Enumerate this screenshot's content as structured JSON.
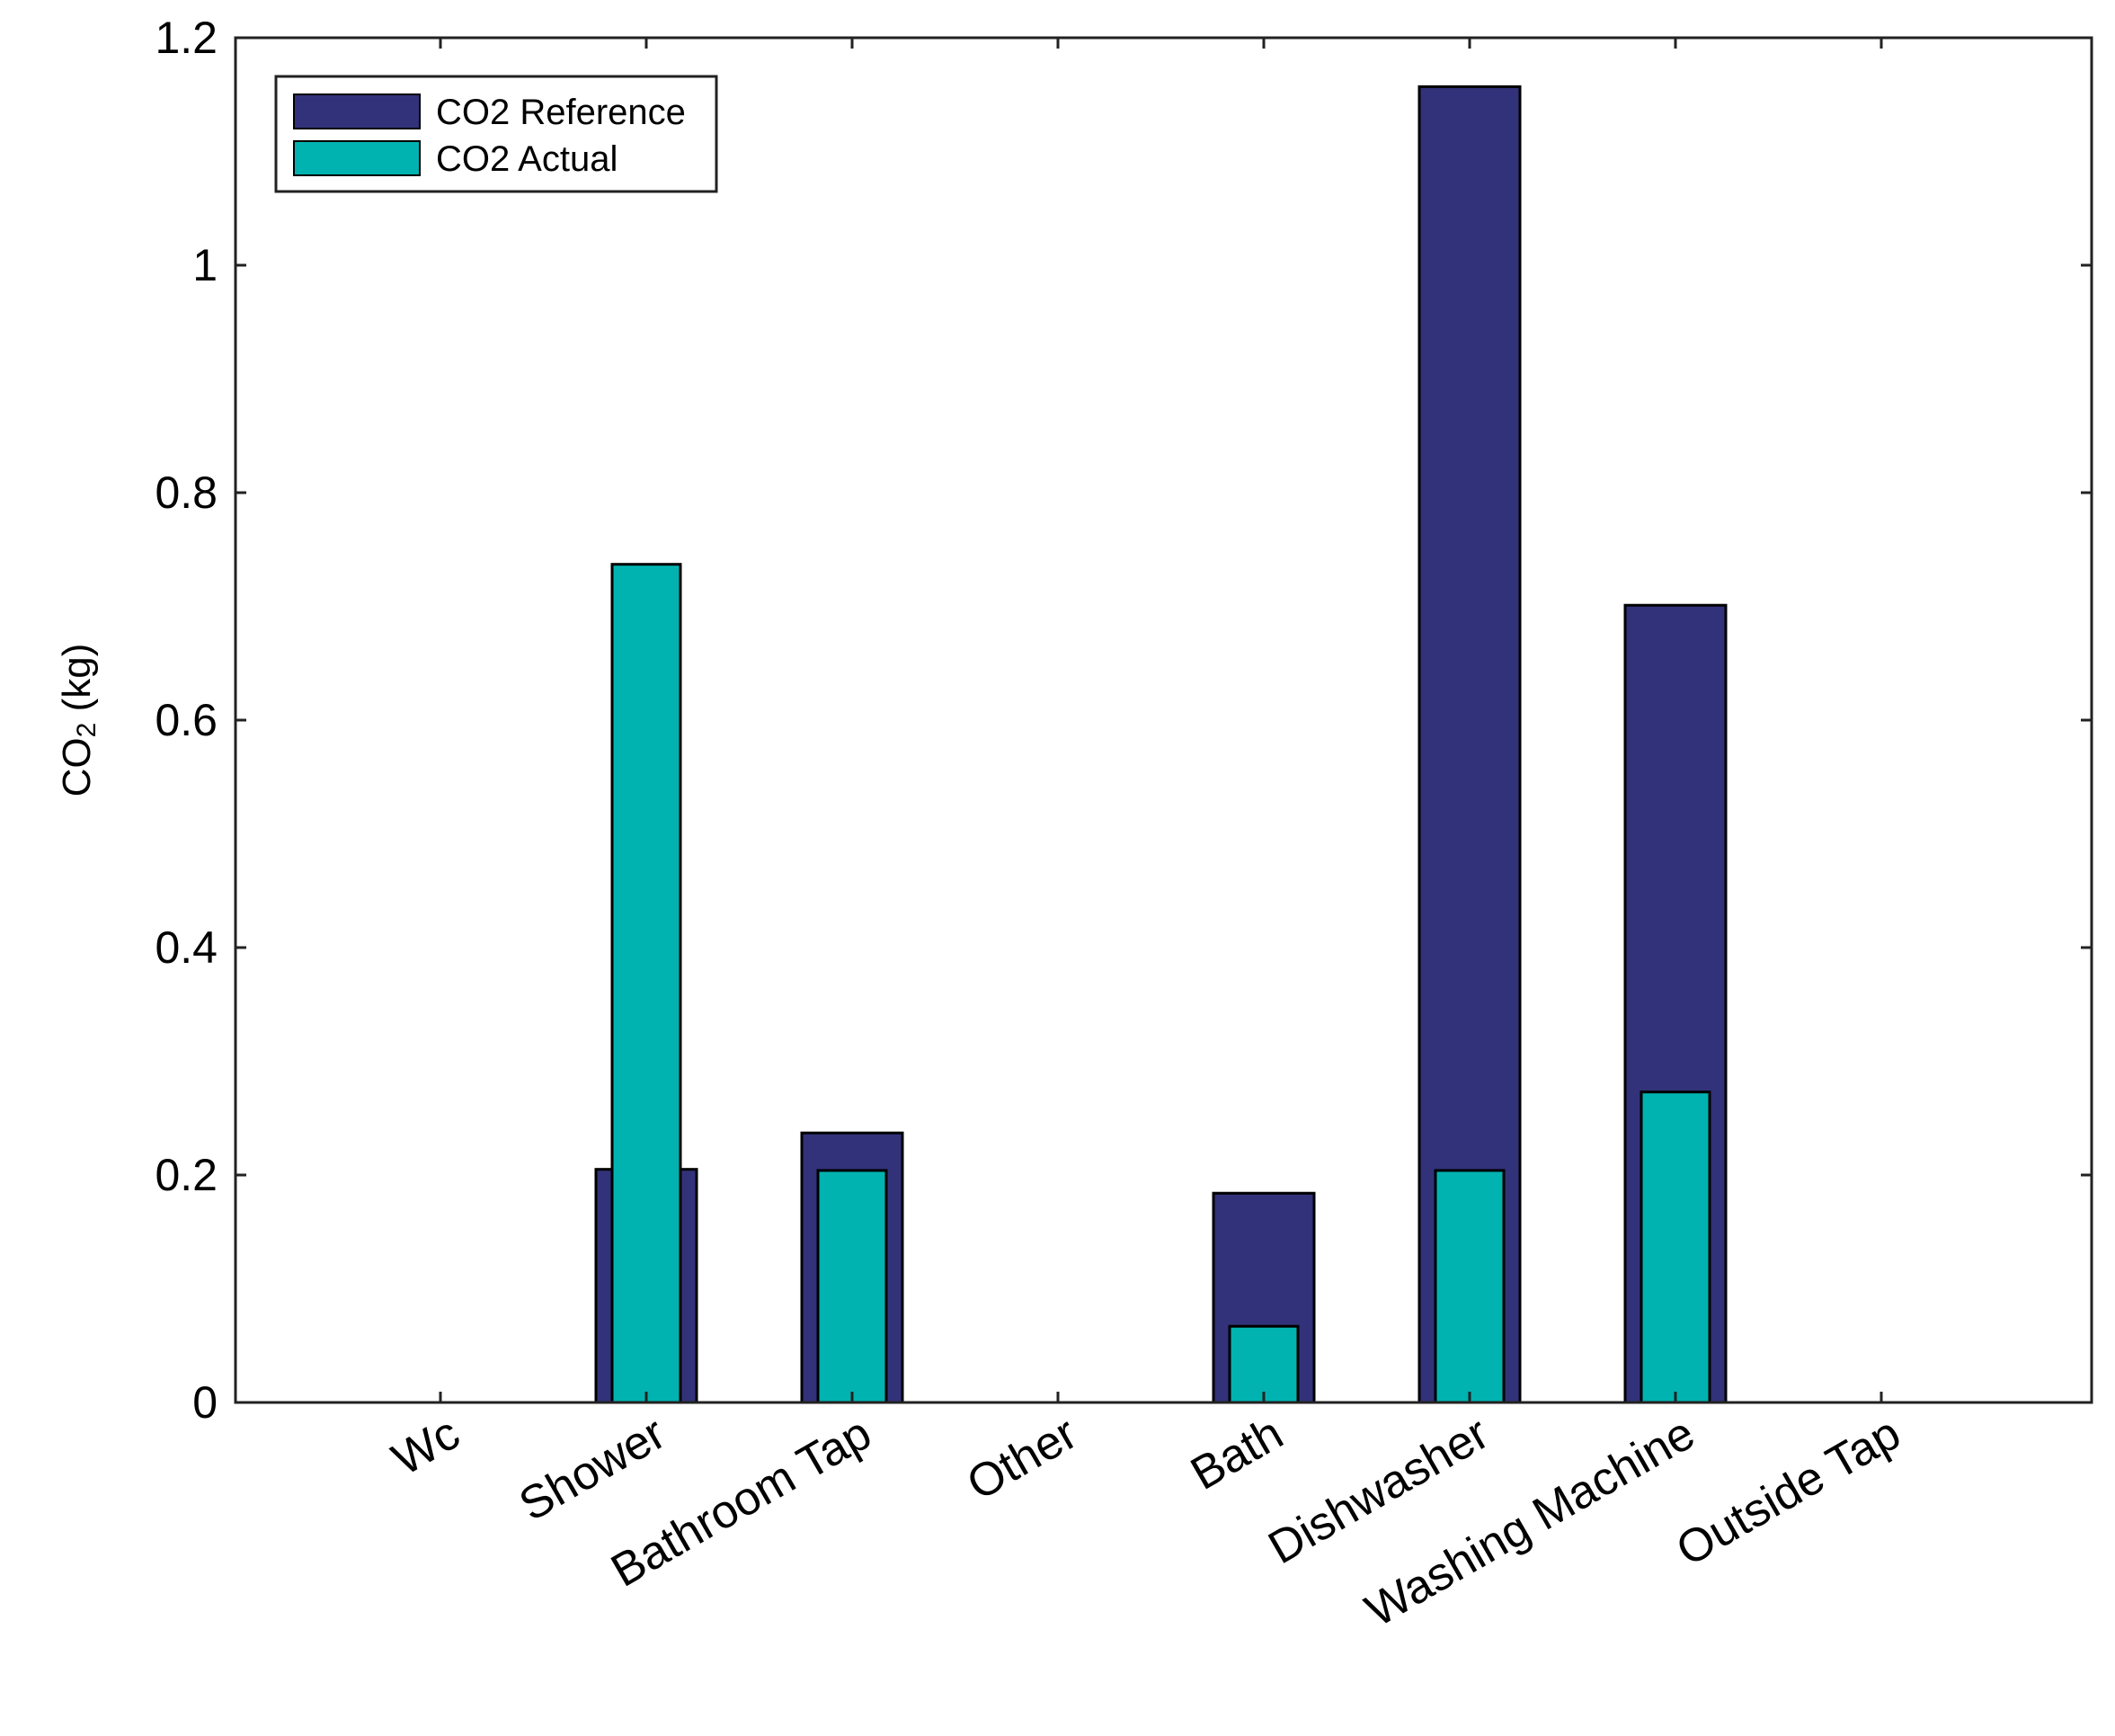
{
  "chart_data": {
    "type": "bar",
    "title": "",
    "xlabel": "",
    "ylabel": {
      "main": "CO",
      "subscript": "2",
      "unit": " (kg)"
    },
    "ylim": [
      0,
      1.2
    ],
    "yticks": [
      0,
      0.2,
      0.4,
      0.6,
      0.8,
      1,
      1.2
    ],
    "ytick_labels": [
      "0",
      "0.2",
      "0.4",
      "0.6",
      "0.8",
      "1",
      "1.2"
    ],
    "grid": false,
    "legend_position": "top-left",
    "categories": [
      "Wc",
      "Shower",
      "Bathroom Tap",
      "Other",
      "Bath",
      "Dishwasher",
      "Washing Machine",
      "Outside Tap"
    ],
    "series": [
      {
        "name": "CO2 Reference",
        "color": "#32327a",
        "values": [
          0,
          0.205,
          0.237,
          0,
          0.184,
          1.157,
          0.701,
          0
        ]
      },
      {
        "name": "CO2 Actual",
        "color": "#00b3b0",
        "values": [
          0,
          0.737,
          0.204,
          0,
          0.067,
          0.204,
          0.273,
          0
        ]
      }
    ]
  }
}
